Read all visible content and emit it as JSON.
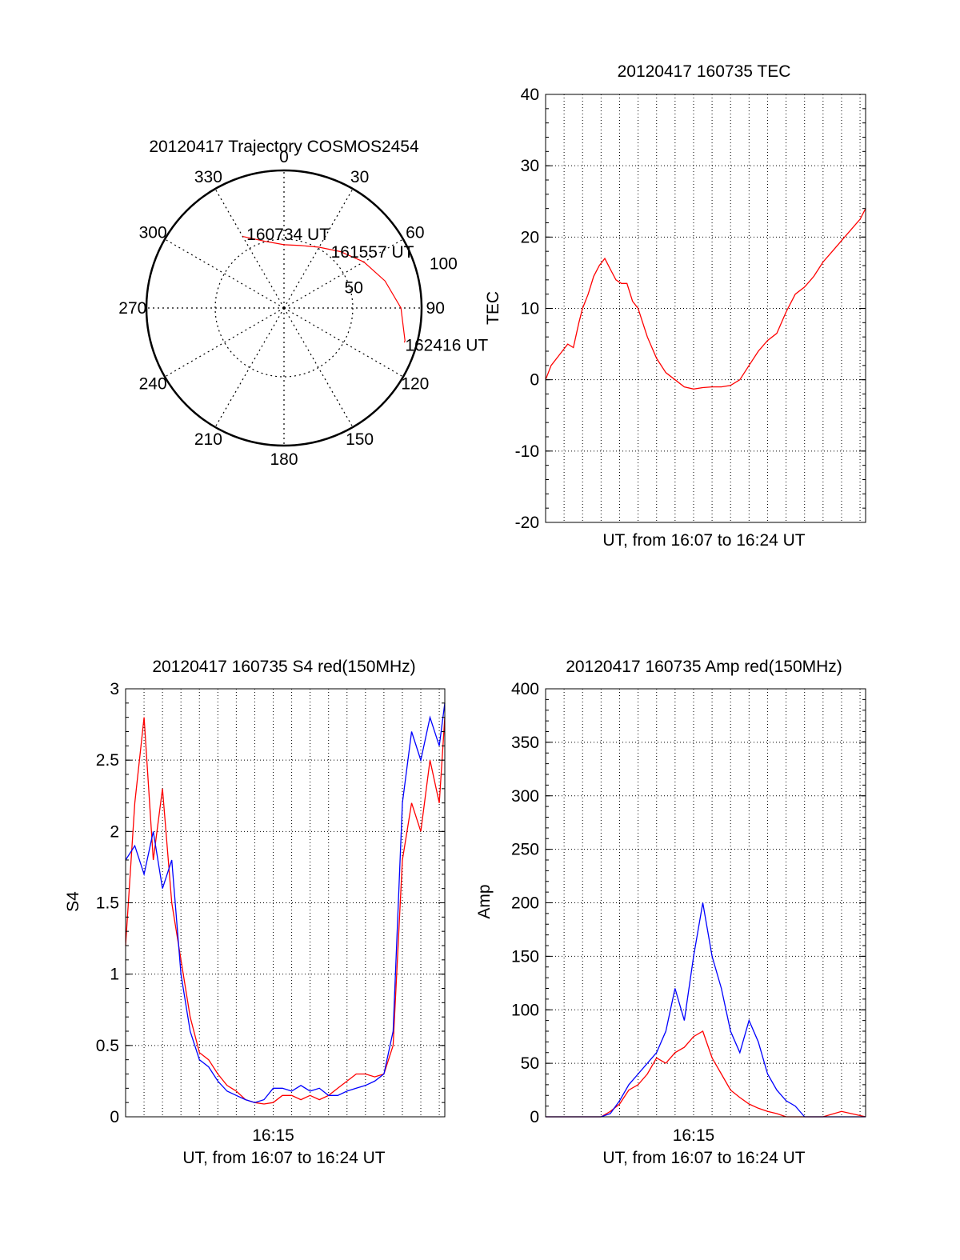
{
  "chart_data": [
    {
      "id": "trajectory",
      "type": "polar",
      "title": "20120417 Trajectory COSMOS2454",
      "azimuth_labels": [
        "0",
        "30",
        "60",
        "90",
        "120",
        "150",
        "180",
        "210",
        "240",
        "270",
        "300",
        "330"
      ],
      "azimuth_values": [
        0,
        30,
        60,
        90,
        120,
        150,
        180,
        210,
        240,
        270,
        300,
        330
      ],
      "radial_rings": [
        50,
        100
      ],
      "radial_max": 100,
      "radial_tick_labels": [
        "50",
        "100"
      ],
      "series": [
        {
          "color": "#ff0000",
          "points": [
            {
              "az": 330,
              "r": 60
            },
            {
              "az": 345,
              "r": 50
            },
            {
              "az": 0,
              "r": 46
            },
            {
              "az": 15,
              "r": 47
            },
            {
              "az": 30,
              "r": 51
            },
            {
              "az": 45,
              "r": 58
            },
            {
              "az": 60,
              "r": 67
            },
            {
              "az": 75,
              "r": 76
            },
            {
              "az": 90,
              "r": 85
            },
            {
              "az": 105,
              "r": 91
            },
            {
              "az": 106,
              "r": 91
            }
          ]
        }
      ],
      "annotations": [
        {
          "text": "160734 UT",
          "az": 333,
          "r": 60
        },
        {
          "text": "161557 UT",
          "az": 40,
          "r": 53
        },
        {
          "text": "162416 UT",
          "az": 107,
          "r": 92
        }
      ]
    },
    {
      "id": "tec",
      "type": "line",
      "title": "20120417 160735 TEC",
      "xlabel": "UT, from 16:07 to 16:24 UT",
      "ylabel": "TEC",
      "xlim": [
        0,
        17.3
      ],
      "ylim": [
        -20,
        40
      ],
      "yticks": [
        -20,
        -10,
        0,
        10,
        20,
        30,
        40
      ],
      "ytick_labels": [
        "-20",
        "-10",
        "0",
        "10",
        "20",
        "30",
        "40"
      ],
      "grid": true,
      "series": [
        {
          "color": "#ff0000",
          "x": [
            0,
            0.3,
            0.6,
            0.9,
            1.2,
            1.5,
            1.8,
            2.0,
            2.3,
            2.6,
            2.9,
            3.2,
            3.5,
            3.8,
            4.1,
            4.4,
            4.7,
            5.0,
            5.5,
            6.0,
            6.5,
            7.0,
            7.5,
            8.0,
            8.5,
            9.0,
            9.5,
            10.0,
            10.5,
            11.0,
            11.5,
            12.0,
            12.5,
            13.0,
            13.5,
            14.0,
            14.5,
            15.0,
            15.5,
            16.0,
            16.5,
            17.0,
            17.3
          ],
          "y": [
            0,
            2,
            3,
            4,
            5,
            4.5,
            8,
            10,
            12,
            14.5,
            16,
            17,
            15.5,
            14,
            13.5,
            13.5,
            11,
            10,
            6,
            3,
            1,
            0,
            -1,
            -1.3,
            -1.1,
            -1,
            -1,
            -0.8,
            0,
            2,
            4,
            5.5,
            6.5,
            9.5,
            12,
            13,
            14.5,
            16.5,
            18,
            19.5,
            21,
            22.5,
            24
          ]
        }
      ]
    },
    {
      "id": "s4",
      "type": "line",
      "title": "20120417 160735 S4 red(150MHz)",
      "xlabel": "UT, from 16:07 to 16:24 UT",
      "ylabel": "S4",
      "xlim": [
        0,
        17.3
      ],
      "ylim": [
        0,
        3
      ],
      "yticks": [
        0,
        0.5,
        1,
        1.5,
        2,
        2.5,
        3
      ],
      "ytick_labels": [
        "0",
        "0.5",
        "1",
        "1.5",
        "2",
        "2.5",
        "3"
      ],
      "xticks": [
        8
      ],
      "xtick_labels": [
        "16:15"
      ],
      "grid": true,
      "series": [
        {
          "color": "#ff0000",
          "x": [
            0,
            0.5,
            1.0,
            1.5,
            2.0,
            2.5,
            3.0,
            3.5,
            4.0,
            4.5,
            5.0,
            5.5,
            6.0,
            6.5,
            7.0,
            7.5,
            8.0,
            8.5,
            9.0,
            9.5,
            10.0,
            10.5,
            11.0,
            11.5,
            12.0,
            12.5,
            13.0,
            13.5,
            14.0,
            14.5,
            15.0,
            15.5,
            16.0,
            16.5,
            17.0,
            17.3
          ],
          "y": [
            1.2,
            2.2,
            2.8,
            1.8,
            2.3,
            1.5,
            1.1,
            0.7,
            0.45,
            0.4,
            0.3,
            0.22,
            0.18,
            0.12,
            0.1,
            0.09,
            0.1,
            0.15,
            0.15,
            0.12,
            0.15,
            0.12,
            0.15,
            0.2,
            0.25,
            0.3,
            0.3,
            0.28,
            0.3,
            0.5,
            1.8,
            2.2,
            2.0,
            2.5,
            2.2,
            2.8
          ]
        },
        {
          "color": "#0000ff",
          "x": [
            0,
            0.5,
            1.0,
            1.5,
            2.0,
            2.5,
            3.0,
            3.5,
            4.0,
            4.5,
            5.0,
            5.5,
            6.0,
            6.5,
            7.0,
            7.5,
            8.0,
            8.5,
            9.0,
            9.5,
            10.0,
            10.5,
            11.0,
            11.5,
            12.0,
            12.5,
            13.0,
            13.5,
            14.0,
            14.5,
            15.0,
            15.5,
            16.0,
            16.5,
            17.0,
            17.3
          ],
          "y": [
            1.8,
            1.9,
            1.7,
            2.0,
            1.6,
            1.8,
            1.0,
            0.6,
            0.4,
            0.35,
            0.25,
            0.18,
            0.15,
            0.12,
            0.1,
            0.12,
            0.2,
            0.2,
            0.18,
            0.22,
            0.18,
            0.2,
            0.15,
            0.15,
            0.18,
            0.2,
            0.22,
            0.25,
            0.3,
            0.6,
            2.2,
            2.7,
            2.5,
            2.8,
            2.6,
            2.9
          ]
        }
      ]
    },
    {
      "id": "amp",
      "type": "line",
      "title": "20120417 160735 Amp red(150MHz)",
      "xlabel": "UT, from 16:07 to 16:24 UT",
      "ylabel": "Amp",
      "xlim": [
        0,
        17.3
      ],
      "ylim": [
        0,
        400
      ],
      "yticks": [
        0,
        50,
        100,
        150,
        200,
        250,
        300,
        350,
        400
      ],
      "ytick_labels": [
        "0",
        "50",
        "100",
        "150",
        "200",
        "250",
        "300",
        "350",
        "400"
      ],
      "xticks": [
        8
      ],
      "xtick_labels": [
        "16:15"
      ],
      "grid": true,
      "series": [
        {
          "color": "#ff0000",
          "x": [
            0,
            1,
            2,
            3,
            3.5,
            4,
            4.5,
            5,
            5.5,
            6,
            6.5,
            7,
            7.5,
            8,
            8.5,
            9,
            9.5,
            10,
            10.5,
            11,
            11.5,
            12,
            12.5,
            13,
            14,
            15,
            16,
            17.3
          ],
          "y": [
            0,
            0,
            0,
            0,
            5,
            12,
            25,
            30,
            40,
            55,
            50,
            60,
            65,
            75,
            80,
            55,
            40,
            25,
            18,
            12,
            8,
            5,
            3,
            0,
            0,
            0,
            5,
            0
          ]
        },
        {
          "color": "#0000ff",
          "x": [
            0,
            1,
            2,
            3,
            3.5,
            4,
            4.5,
            5,
            5.5,
            6,
            6.5,
            7,
            7.5,
            8,
            8.5,
            9,
            9.5,
            10,
            10.5,
            11,
            11.5,
            12,
            12.5,
            13,
            13.5,
            14,
            15,
            16,
            17.3
          ],
          "y": [
            0,
            0,
            0,
            0,
            3,
            15,
            30,
            40,
            50,
            60,
            80,
            120,
            90,
            150,
            200,
            150,
            120,
            80,
            60,
            90,
            70,
            40,
            25,
            15,
            10,
            0,
            0,
            0,
            0
          ]
        }
      ]
    }
  ]
}
